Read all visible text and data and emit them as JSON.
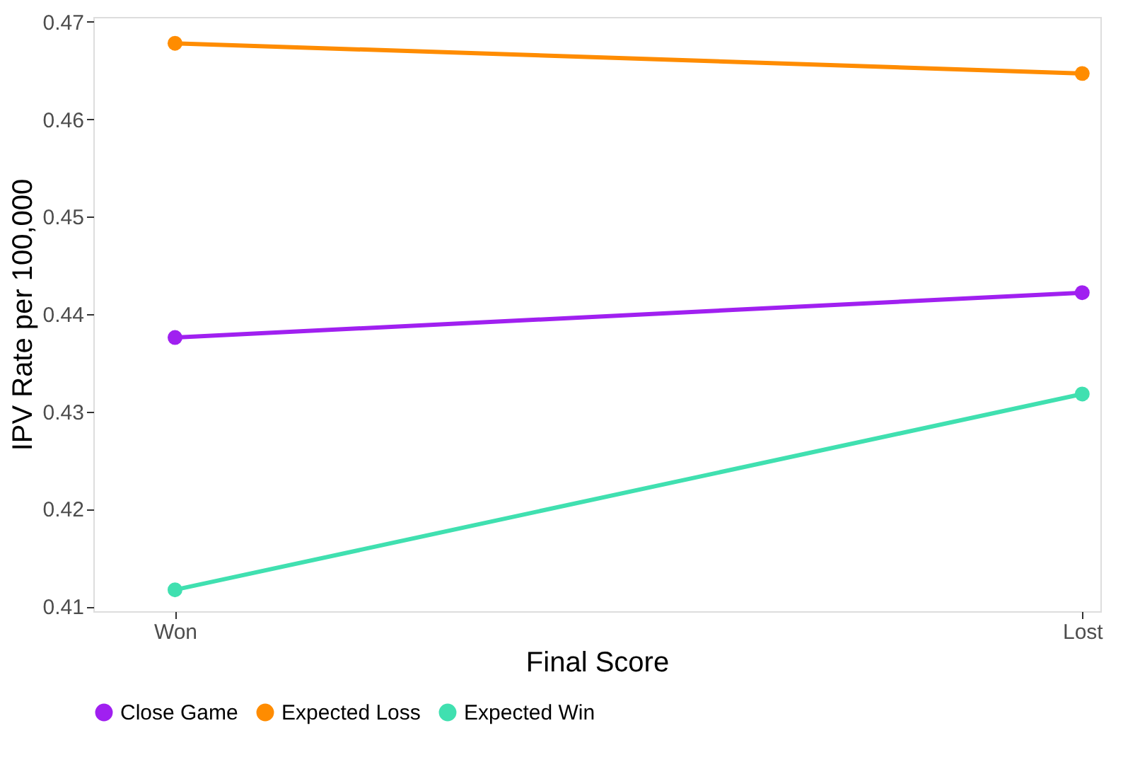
{
  "chart_data": {
    "type": "line",
    "xlabel": "Final Score",
    "ylabel": "IPV Rate per 100,000",
    "categories": [
      "Won",
      "Lost"
    ],
    "series": [
      {
        "name": "Close Game",
        "color": "#a020f0",
        "values": [
          0.4376,
          0.4422
        ]
      },
      {
        "name": "Expected Loss",
        "color": "#ff8c00",
        "values": [
          0.4678,
          0.4647
        ]
      },
      {
        "name": "Expected Win",
        "color": "#40e0b0",
        "values": [
          0.4117,
          0.4318
        ]
      }
    ],
    "ylim": [
      0.4095,
      0.4705
    ],
    "yticks": [
      0.41,
      0.42,
      0.43,
      0.44,
      0.45,
      0.46,
      0.47
    ],
    "grid": false,
    "legend": "bottom",
    "marker": "circle",
    "line_style": "solid"
  }
}
